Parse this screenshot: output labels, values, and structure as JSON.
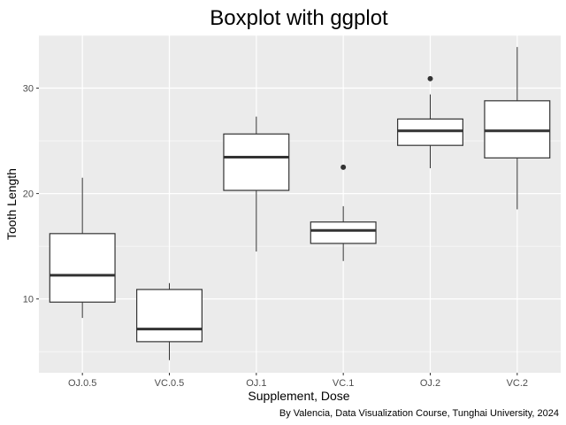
{
  "chart_data": {
    "type": "boxplot",
    "title": "Boxplot with ggplot",
    "xlabel": "Supplement, Dose",
    "ylabel": "Tooth Length",
    "caption": "By Valencia, Data Visualization Course, Tunghai University, 2024",
    "categories": [
      "OJ.0.5",
      "VC.0.5",
      "OJ.1",
      "VC.1",
      "OJ.2",
      "VC.2"
    ],
    "ylim": [
      3,
      35
    ],
    "yticks": [
      10,
      20,
      30
    ],
    "grid": true,
    "colors": {
      "panel": "#ebebeb",
      "grid_major": "#ffffff",
      "box_fill": "#ffffff",
      "box_stroke": "#333333",
      "tick_text": "#4d4d4d"
    },
    "boxes": [
      {
        "category": "OJ.0.5",
        "min": 8.2,
        "q1": 9.7,
        "median": 12.25,
        "q3": 16.2,
        "max": 21.5,
        "outliers": []
      },
      {
        "category": "VC.0.5",
        "min": 4.2,
        "q1": 5.95,
        "median": 7.15,
        "q3": 10.9,
        "max": 11.5,
        "outliers": []
      },
      {
        "category": "OJ.1",
        "min": 14.5,
        "q1": 20.3,
        "median": 23.45,
        "q3": 25.65,
        "max": 27.3,
        "outliers": []
      },
      {
        "category": "VC.1",
        "min": 13.6,
        "q1": 15.27,
        "median": 16.5,
        "q3": 17.3,
        "max": 18.8,
        "outliers": [
          22.5
        ]
      },
      {
        "category": "OJ.2",
        "min": 22.4,
        "q1": 24.57,
        "median": 25.95,
        "q3": 27.07,
        "max": 29.4,
        "outliers": [
          30.9
        ]
      },
      {
        "category": "VC.2",
        "min": 18.5,
        "q1": 23.38,
        "median": 25.95,
        "q3": 28.8,
        "max": 33.9,
        "outliers": []
      }
    ]
  }
}
